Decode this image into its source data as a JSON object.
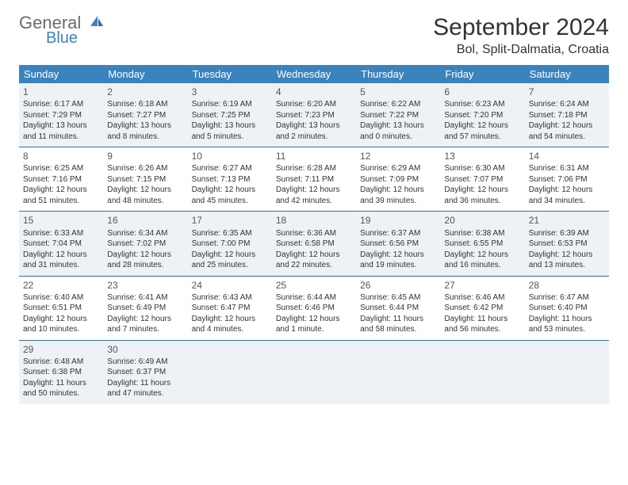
{
  "logo": {
    "word1": "General",
    "word2": "Blue"
  },
  "title": {
    "month": "September 2024",
    "location": "Bol, Split-Dalmatia, Croatia"
  },
  "colors": {
    "header_bg": "#3b83bd",
    "header_text": "#ffffff",
    "border": "#3b6a9a",
    "shaded_bg": "#eef2f5",
    "text": "#333333",
    "logo_gray": "#6b6b6b",
    "logo_blue": "#3b83bd"
  },
  "day_names": [
    "Sunday",
    "Monday",
    "Tuesday",
    "Wednesday",
    "Thursday",
    "Friday",
    "Saturday"
  ],
  "weeks": [
    {
      "shaded": true,
      "days": [
        {
          "n": "1",
          "sr": "6:17 AM",
          "ss": "7:29 PM",
          "dl": "13 hours and 11 minutes."
        },
        {
          "n": "2",
          "sr": "6:18 AM",
          "ss": "7:27 PM",
          "dl": "13 hours and 8 minutes."
        },
        {
          "n": "3",
          "sr": "6:19 AM",
          "ss": "7:25 PM",
          "dl": "13 hours and 5 minutes."
        },
        {
          "n": "4",
          "sr": "6:20 AM",
          "ss": "7:23 PM",
          "dl": "13 hours and 2 minutes."
        },
        {
          "n": "5",
          "sr": "6:22 AM",
          "ss": "7:22 PM",
          "dl": "13 hours and 0 minutes."
        },
        {
          "n": "6",
          "sr": "6:23 AM",
          "ss": "7:20 PM",
          "dl": "12 hours and 57 minutes."
        },
        {
          "n": "7",
          "sr": "6:24 AM",
          "ss": "7:18 PM",
          "dl": "12 hours and 54 minutes."
        }
      ]
    },
    {
      "shaded": false,
      "days": [
        {
          "n": "8",
          "sr": "6:25 AM",
          "ss": "7:16 PM",
          "dl": "12 hours and 51 minutes."
        },
        {
          "n": "9",
          "sr": "6:26 AM",
          "ss": "7:15 PM",
          "dl": "12 hours and 48 minutes."
        },
        {
          "n": "10",
          "sr": "6:27 AM",
          "ss": "7:13 PM",
          "dl": "12 hours and 45 minutes."
        },
        {
          "n": "11",
          "sr": "6:28 AM",
          "ss": "7:11 PM",
          "dl": "12 hours and 42 minutes."
        },
        {
          "n": "12",
          "sr": "6:29 AM",
          "ss": "7:09 PM",
          "dl": "12 hours and 39 minutes."
        },
        {
          "n": "13",
          "sr": "6:30 AM",
          "ss": "7:07 PM",
          "dl": "12 hours and 36 minutes."
        },
        {
          "n": "14",
          "sr": "6:31 AM",
          "ss": "7:06 PM",
          "dl": "12 hours and 34 minutes."
        }
      ]
    },
    {
      "shaded": true,
      "days": [
        {
          "n": "15",
          "sr": "6:33 AM",
          "ss": "7:04 PM",
          "dl": "12 hours and 31 minutes."
        },
        {
          "n": "16",
          "sr": "6:34 AM",
          "ss": "7:02 PM",
          "dl": "12 hours and 28 minutes."
        },
        {
          "n": "17",
          "sr": "6:35 AM",
          "ss": "7:00 PM",
          "dl": "12 hours and 25 minutes."
        },
        {
          "n": "18",
          "sr": "6:36 AM",
          "ss": "6:58 PM",
          "dl": "12 hours and 22 minutes."
        },
        {
          "n": "19",
          "sr": "6:37 AM",
          "ss": "6:56 PM",
          "dl": "12 hours and 19 minutes."
        },
        {
          "n": "20",
          "sr": "6:38 AM",
          "ss": "6:55 PM",
          "dl": "12 hours and 16 minutes."
        },
        {
          "n": "21",
          "sr": "6:39 AM",
          "ss": "6:53 PM",
          "dl": "12 hours and 13 minutes."
        }
      ]
    },
    {
      "shaded": false,
      "days": [
        {
          "n": "22",
          "sr": "6:40 AM",
          "ss": "6:51 PM",
          "dl": "12 hours and 10 minutes."
        },
        {
          "n": "23",
          "sr": "6:41 AM",
          "ss": "6:49 PM",
          "dl": "12 hours and 7 minutes."
        },
        {
          "n": "24",
          "sr": "6:43 AM",
          "ss": "6:47 PM",
          "dl": "12 hours and 4 minutes."
        },
        {
          "n": "25",
          "sr": "6:44 AM",
          "ss": "6:46 PM",
          "dl": "12 hours and 1 minute."
        },
        {
          "n": "26",
          "sr": "6:45 AM",
          "ss": "6:44 PM",
          "dl": "11 hours and 58 minutes."
        },
        {
          "n": "27",
          "sr": "6:46 AM",
          "ss": "6:42 PM",
          "dl": "11 hours and 56 minutes."
        },
        {
          "n": "28",
          "sr": "6:47 AM",
          "ss": "6:40 PM",
          "dl": "11 hours and 53 minutes."
        }
      ]
    },
    {
      "shaded": true,
      "days": [
        {
          "n": "29",
          "sr": "6:48 AM",
          "ss": "6:38 PM",
          "dl": "11 hours and 50 minutes."
        },
        {
          "n": "30",
          "sr": "6:49 AM",
          "ss": "6:37 PM",
          "dl": "11 hours and 47 minutes."
        },
        null,
        null,
        null,
        null,
        null
      ]
    }
  ],
  "labels": {
    "sunrise": "Sunrise:",
    "sunset": "Sunset:",
    "daylight": "Daylight:"
  }
}
